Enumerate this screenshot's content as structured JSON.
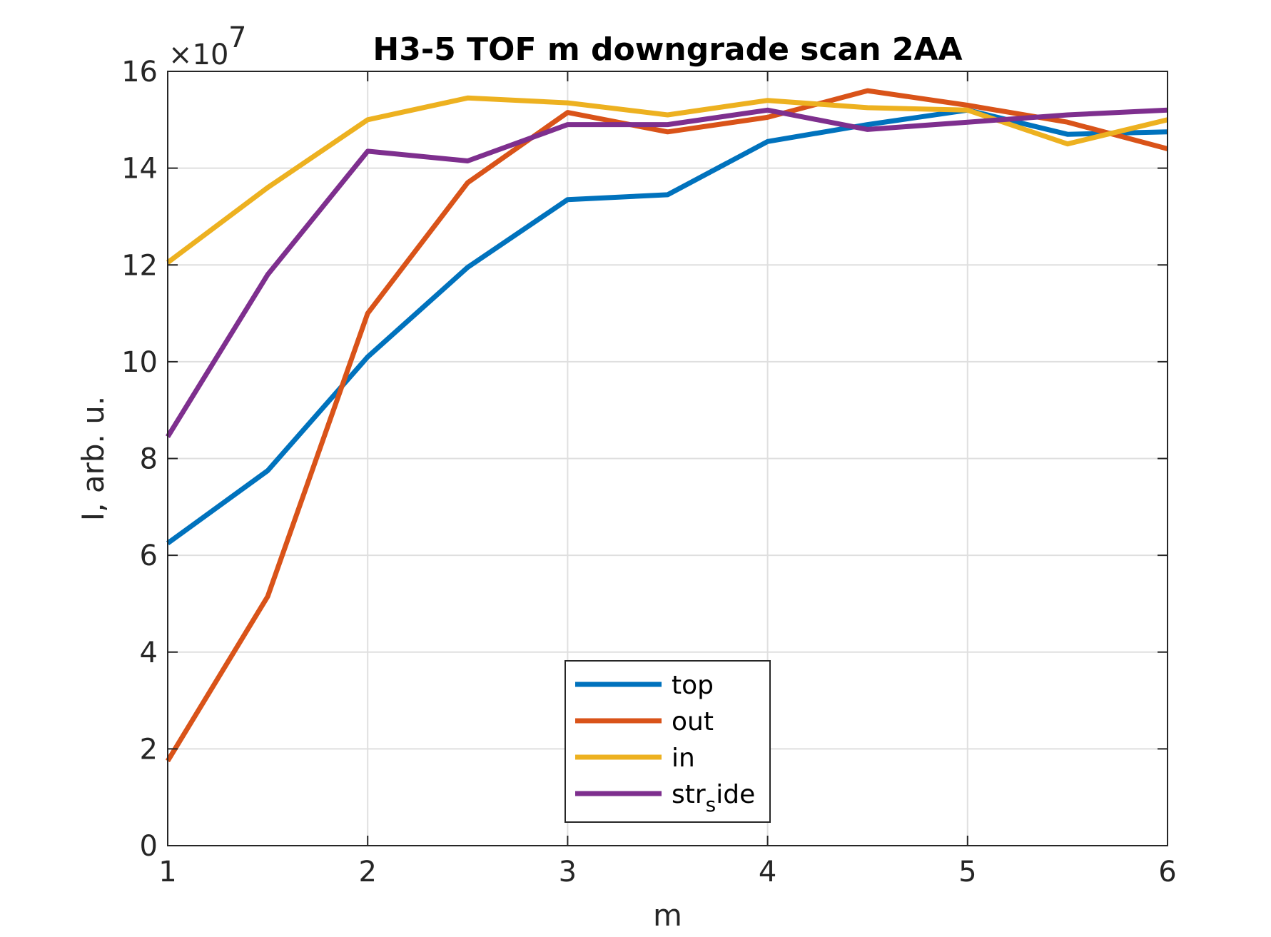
{
  "chart_data": {
    "type": "line",
    "title": "H3-5 TOF m downgrade scan 2AA",
    "xlabel": "m",
    "ylabel": "I, arb. u.",
    "y_exponent_label": "×10",
    "y_exponent_power": "7",
    "y_scale": 10000000,
    "xlim": [
      1,
      6
    ],
    "ylim": [
      0,
      16
    ],
    "x_ticks": [
      1,
      2,
      3,
      4,
      5,
      6
    ],
    "y_ticks": [
      0,
      2,
      4,
      6,
      8,
      10,
      12,
      14,
      16
    ],
    "grid": true,
    "legend_position": "bottom-center",
    "x": [
      1,
      1.5,
      2,
      2.5,
      3,
      3.5,
      4,
      4.5,
      5,
      5.5,
      6
    ],
    "series": [
      {
        "name": "top",
        "color": "#0072BD",
        "values": [
          6.25,
          7.75,
          10.1,
          11.95,
          13.35,
          13.45,
          14.55,
          14.9,
          15.2,
          14.7,
          14.75
        ]
      },
      {
        "name": "out",
        "color": "#D95319",
        "values": [
          1.75,
          5.15,
          11.0,
          13.7,
          15.15,
          14.75,
          15.05,
          15.6,
          15.3,
          14.95,
          14.4
        ]
      },
      {
        "name": "in",
        "color": "#EDB120",
        "values": [
          12.05,
          13.6,
          15.0,
          15.45,
          15.35,
          15.1,
          15.4,
          15.25,
          15.2,
          14.5,
          15.0
        ]
      },
      {
        "name": "str_side",
        "label_main": "str",
        "label_sub": "s",
        "label_tail": "ide",
        "color": "#7E2F8E",
        "values": [
          8.45,
          11.8,
          14.35,
          14.15,
          14.9,
          14.9,
          15.2,
          14.8,
          14.95,
          15.1,
          15.2
        ]
      }
    ]
  }
}
